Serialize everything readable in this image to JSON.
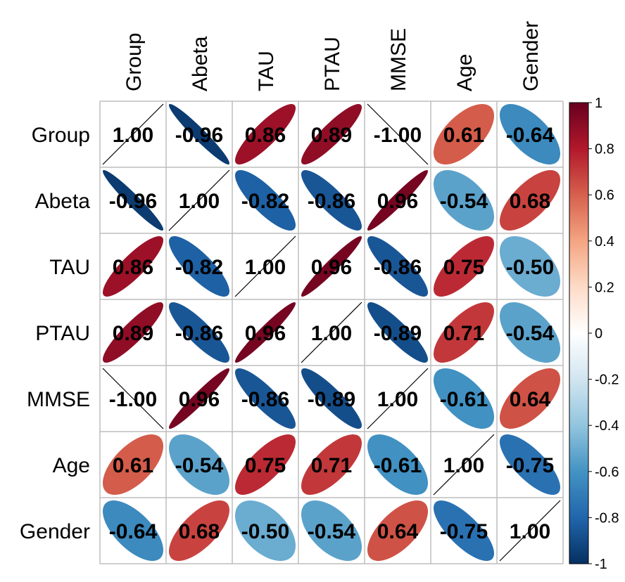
{
  "chart_data": {
    "type": "heatmap",
    "title": "",
    "variables": [
      "Group",
      "Abeta",
      "TAU",
      "PTAU",
      "MMSE",
      "Age",
      "Gender"
    ],
    "matrix": [
      [
        1.0,
        -0.96,
        0.86,
        0.89,
        -1.0,
        0.61,
        -0.64
      ],
      [
        -0.96,
        1.0,
        -0.82,
        -0.86,
        0.96,
        -0.54,
        0.68
      ],
      [
        0.86,
        -0.82,
        1.0,
        0.96,
        -0.86,
        0.75,
        -0.5
      ],
      [
        0.89,
        -0.86,
        0.96,
        1.0,
        -0.89,
        0.71,
        -0.54
      ],
      [
        -1.0,
        0.96,
        -0.86,
        -0.89,
        1.0,
        -0.61,
        0.64
      ],
      [
        0.61,
        -0.54,
        0.75,
        0.71,
        -0.61,
        1.0,
        -0.75
      ],
      [
        -0.64,
        0.68,
        -0.5,
        -0.54,
        0.64,
        -0.75,
        1.0
      ]
    ],
    "labels": [
      [
        "1.00",
        "-0.96",
        "0.86",
        "0.89",
        "-1.00",
        "0.61",
        "-0.64"
      ],
      [
        "-0.96",
        "1.00",
        "-0.82",
        "-0.86",
        "0.96",
        "-0.54",
        "0.68"
      ],
      [
        "0.86",
        "-0.82",
        "1.00",
        "0.96",
        "-0.86",
        "0.75",
        "-0.50"
      ],
      [
        "0.89",
        "-0.86",
        "0.96",
        "1.00",
        "-0.89",
        "0.71",
        "-0.54"
      ],
      [
        "-1.00",
        "0.96",
        "-0.86",
        "-0.89",
        "1.00",
        "-0.61",
        "0.64"
      ],
      [
        "0.61",
        "-0.54",
        "0.75",
        "0.71",
        "-0.61",
        "1.00",
        "-0.75"
      ],
      [
        "-0.64",
        "0.68",
        "-0.50",
        "-0.54",
        "0.64",
        "-0.75",
        "1.00"
      ]
    ],
    "colorbar": {
      "range": [
        -1,
        1
      ],
      "ticks": [
        "1",
        "0.8",
        "0.6",
        "0.4",
        "0.2",
        "0",
        "-0.2",
        "-0.4",
        "-0.6",
        "-0.8",
        "-1"
      ],
      "tick_values": [
        1,
        0.8,
        0.6,
        0.4,
        0.2,
        0,
        -0.2,
        -0.4,
        -0.6,
        -0.8,
        -1
      ],
      "colors": [
        "#67001F",
        "#B2182B",
        "#D6604D",
        "#F4A582",
        "#FDDBC7",
        "#FFFFFF",
        "#D1E5F0",
        "#92C5DE",
        "#4393C3",
        "#2166AC",
        "#053061"
      ]
    },
    "method": "ellipse",
    "grid": true
  }
}
